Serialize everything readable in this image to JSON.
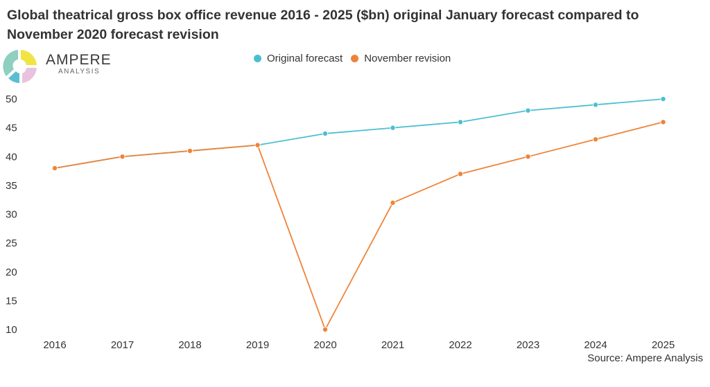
{
  "title": "Global theatrical gross box office revenue 2016 - 2025 ($bn) original January forecast compared to November 2020 forecast revision",
  "logo": {
    "name": "AMPERE",
    "sub": "ANALYSIS",
    "colors": [
      "#f0e442",
      "#e9c3dd",
      "#5bbdd3",
      "#8ecfbf"
    ]
  },
  "source": "Source: Ampere Analysis",
  "chart_data": {
    "type": "line",
    "title": "Global theatrical gross box office revenue 2016 - 2025 ($bn) original January forecast compared to November 2020 forecast revision",
    "xlabel": "",
    "ylabel": "",
    "x": [
      "2016",
      "2017",
      "2018",
      "2019",
      "2020",
      "2021",
      "2022",
      "2023",
      "2024",
      "2025"
    ],
    "ylim": [
      10,
      50
    ],
    "yticks": [
      10,
      15,
      20,
      25,
      30,
      35,
      40,
      45,
      50
    ],
    "grid": false,
    "legend_position": "top-center",
    "series": [
      {
        "name": "Original forecast",
        "color": "#4bbfd2",
        "values": [
          38,
          40,
          41,
          42,
          44,
          45,
          46,
          48,
          49,
          50
        ]
      },
      {
        "name": "November revision",
        "color": "#ef8337",
        "values": [
          38,
          40,
          41,
          42,
          10,
          32,
          37,
          40,
          43,
          46
        ]
      }
    ]
  }
}
